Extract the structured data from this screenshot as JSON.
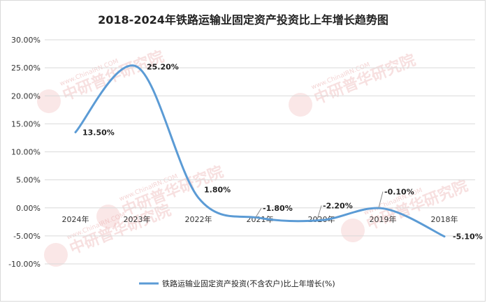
{
  "chart_data": {
    "type": "line",
    "title": "2018-2024年铁路运输业固定资产投资比上年增长趋势图",
    "categories": [
      "2024年",
      "2023年",
      "2022年",
      "2021年",
      "2020年",
      "2019年",
      "2018年"
    ],
    "series": [
      {
        "name": "铁路运输业固定资产投资(不含农户)比上年增长(%)",
        "values": [
          13.5,
          25.2,
          1.8,
          -1.8,
          -2.2,
          -0.1,
          -5.1
        ],
        "labels": [
          "13.50%",
          "25.20%",
          "1.80%",
          "-1.80%",
          "-2.20%",
          "-0.10%",
          "-5.10%"
        ]
      }
    ],
    "y_ticks": [
      "30.00%",
      "25.00%",
      "20.00%",
      "15.00%",
      "10.00%",
      "5.00%",
      "0.00%",
      "-5.00%",
      "-10.00%"
    ],
    "y_tick_values": [
      30,
      25,
      20,
      15,
      10,
      5,
      0,
      -5,
      -10
    ],
    "ylim": [
      -10,
      30
    ],
    "grid": true,
    "legend_position": "bottom",
    "line_color": "#5b9bd5"
  },
  "watermark": {
    "brand": "中研普华研究院",
    "url": "www.ChinaIRN.COM",
    "logo": "CIRN"
  }
}
